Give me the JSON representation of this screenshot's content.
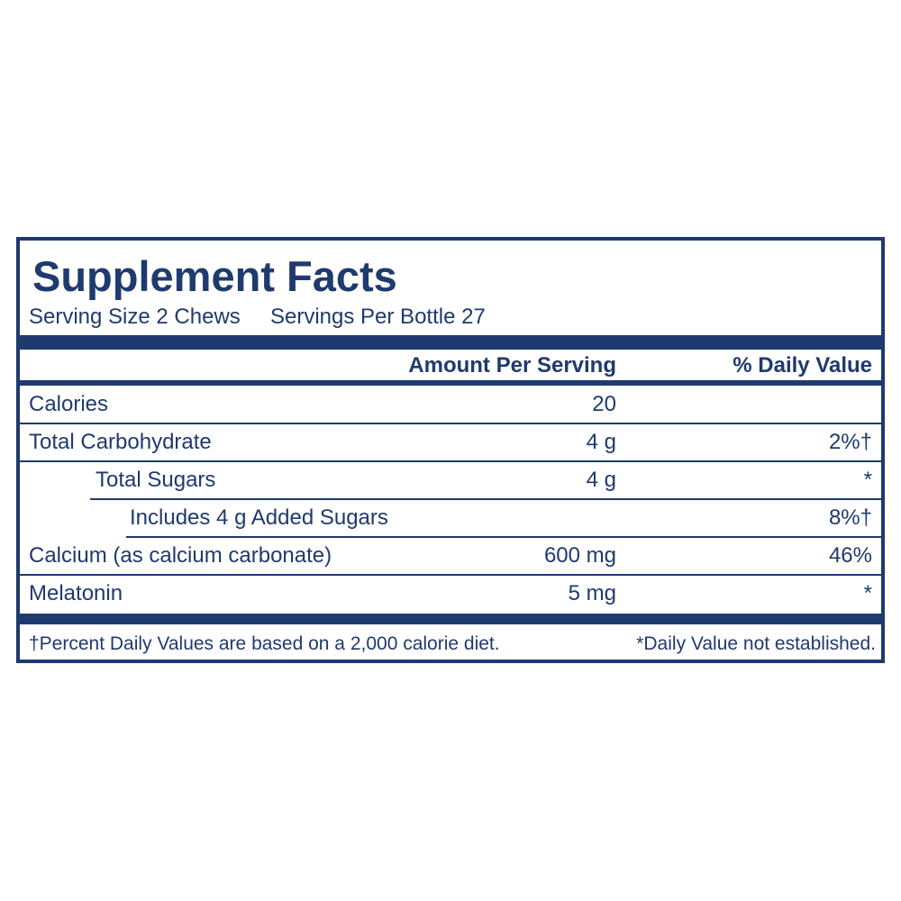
{
  "header": {
    "title": "Supplement Facts",
    "serving_size": "Serving Size 2 Chews",
    "servings_per_container": "Servings Per Bottle 27"
  },
  "table": {
    "columns": [
      "Amount Per Serving",
      "% Daily Value"
    ],
    "rows": [
      {
        "label": "Calories",
        "amount": "20"
      },
      {
        "label": "Total Carbohydrate",
        "amount": "4 g",
        "daily_value": "2%†"
      },
      {
        "label": "Total Sugars",
        "amount": "4 g",
        "daily_value": "*"
      },
      {
        "label": "Includes 4 g Added Sugars",
        "daily_value": "8%†"
      },
      {
        "label": "Calcium (as calcium carbonate)",
        "amount": "600 mg",
        "daily_value": "46%"
      },
      {
        "label": "Melatonin",
        "amount": "5 mg",
        "daily_value": "*"
      }
    ]
  },
  "footnotes": [
    "†Percent Daily Values are based on a 2,000 calorie diet.",
    "*Daily Value not established."
  ]
}
